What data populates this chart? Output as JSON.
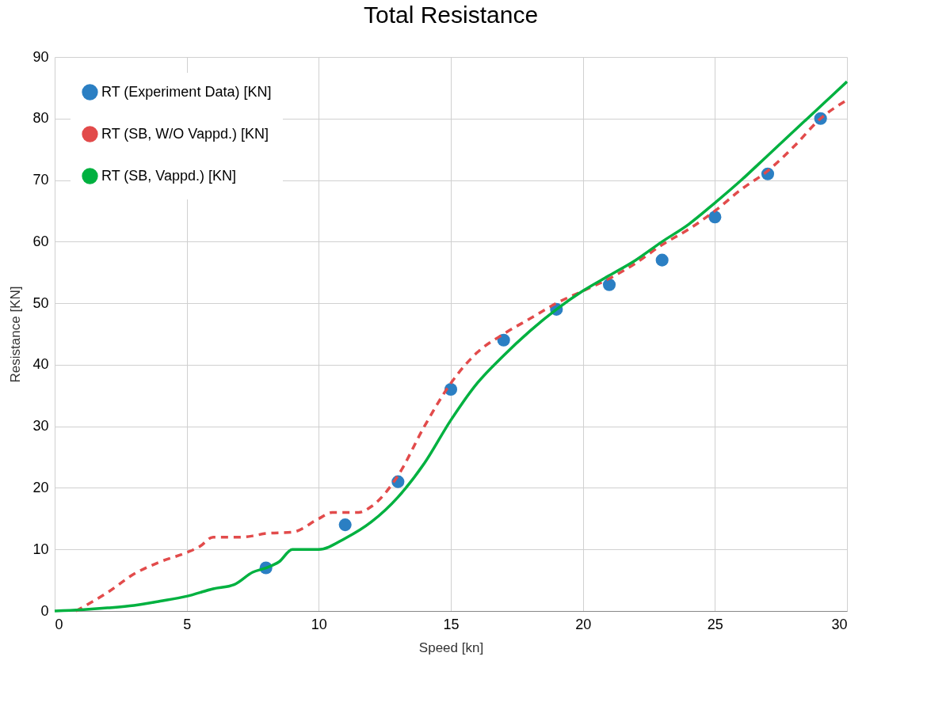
{
  "chart_data": {
    "type": "line",
    "title": "Total Resistance",
    "xlabel": "Speed [kn]",
    "ylabel": "Resistance [KN]",
    "xlim": [
      0,
      30
    ],
    "ylim": [
      0,
      90
    ],
    "xticks": [
      0,
      5,
      10,
      15,
      20,
      25,
      30
    ],
    "yticks": [
      0,
      10,
      20,
      30,
      40,
      50,
      60,
      70,
      80,
      90
    ],
    "grid": true,
    "legend": "top left",
    "series": [
      {
        "name": "RT (Experiment Data) [KN]",
        "type": "scatter",
        "marker": "circle",
        "color": "#2b7fc3",
        "x": [
          8,
          11,
          13,
          15,
          17,
          19,
          21,
          23,
          25,
          27,
          29
        ],
        "values": [
          7,
          14,
          21,
          36,
          44,
          49,
          53,
          57,
          64,
          71,
          80
        ]
      },
      {
        "name": "RT (SB, W/O Vappd.) [KN]",
        "type": "line",
        "line_style": "dashed",
        "color": "#e24b4b",
        "x": [
          0.8,
          2,
          3,
          4,
          5,
          5.5,
          6,
          7,
          7.5,
          8,
          9,
          10,
          10.5,
          11.5,
          12,
          13,
          14,
          15,
          16,
          17,
          18,
          19,
          20,
          21,
          22,
          23,
          24,
          25,
          26,
          27,
          28,
          29,
          30
        ],
        "values": [
          0,
          3,
          6,
          8,
          9.5,
          10.5,
          12,
          12,
          12.2,
          12.6,
          12.8,
          15,
          16,
          16,
          17,
          22,
          30,
          37,
          42,
          45,
          47.5,
          50,
          52,
          54,
          56.5,
          59.5,
          62,
          65,
          68.5,
          71.5,
          75.5,
          80,
          83
        ]
      },
      {
        "name": "RT (SB, Vappd.) [KN]",
        "type": "line",
        "line_style": "solid",
        "color": "#00b140",
        "x": [
          0,
          1,
          2,
          3,
          4,
          5,
          6,
          6.8,
          7.5,
          8,
          8.5,
          9,
          9.5,
          10,
          11,
          12,
          13,
          14,
          15,
          16,
          17,
          18,
          19,
          20,
          21,
          22,
          23,
          24,
          25,
          26,
          27,
          28,
          29,
          30
        ],
        "values": [
          0,
          0.2,
          0.5,
          0.9,
          1.6,
          2.4,
          3.6,
          4.3,
          6.3,
          7,
          8,
          10,
          10,
          10,
          11.8,
          14.5,
          18.5,
          24,
          31,
          37,
          41.5,
          45.5,
          49,
          52,
          54.5,
          57,
          60,
          62.8,
          66.3,
          70,
          74,
          78,
          82,
          86
        ]
      }
    ]
  }
}
